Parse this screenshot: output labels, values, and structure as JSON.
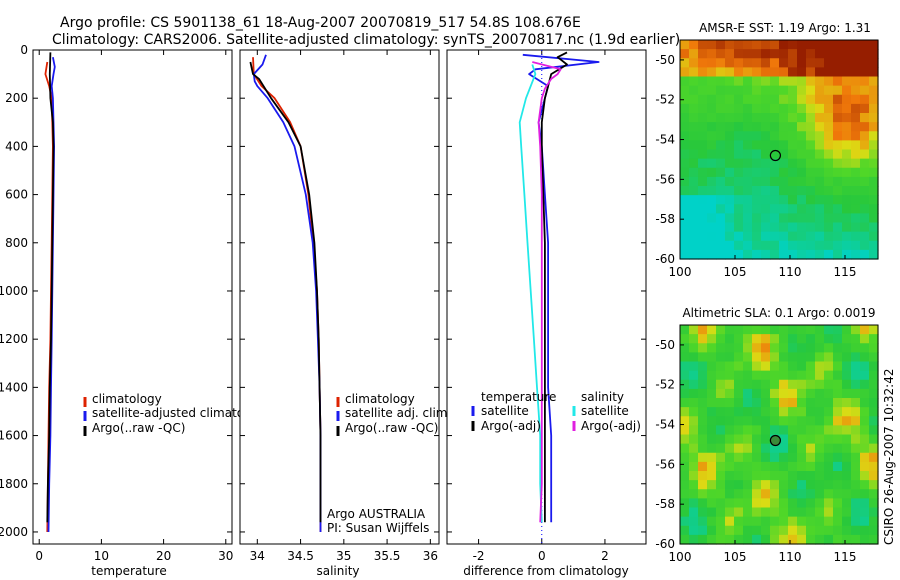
{
  "figure": {
    "title_line1": "Argo profile: CS 5901138_61 18-Aug-2007 20070819_517 54.8S 108.676E",
    "title_line2": "Climatology: CARS2006. Satellite-adjusted climatology: synTS_20070817.nc (1.9d earlier)",
    "side_stamp": "CSIRO 26-Aug-2007 10:32:42"
  },
  "colors": {
    "climatology": "#dd2200",
    "satellite": "#1a1aee",
    "argo": "#000000",
    "sal_satellite": "#22e8e8",
    "sal_argo": "#e020e0"
  },
  "chart_data": [
    {
      "type": "line",
      "name": "temperature-panel",
      "xlabel": "temperature",
      "ylabel": "",
      "xlim": [
        -1,
        31
      ],
      "ylim": [
        2050,
        0
      ],
      "xticks": [
        0,
        10,
        20,
        30
      ],
      "xtick_labels": [
        "0",
        "10",
        "20",
        "30"
      ],
      "yticks": [
        0,
        200,
        400,
        600,
        800,
        1000,
        1200,
        1400,
        1600,
        1800,
        2000
      ],
      "ytick_labels": [
        "0",
        "200",
        "400",
        "600",
        "800",
        "1000",
        "1200",
        "1400",
        "1600",
        "1800",
        "2000"
      ],
      "legend": [
        "climatology",
        "satellite-adjusted climatology",
        "Argo(..raw -QC)"
      ],
      "series": [
        {
          "name": "climatology",
          "color_key": "climatology",
          "points": [
            [
              1.3,
              50
            ],
            [
              1.0,
              100
            ],
            [
              1.6,
              150
            ],
            [
              2.0,
              200
            ],
            [
              2.1,
              300
            ],
            [
              2.2,
              400
            ],
            [
              2.1,
              600
            ],
            [
              2.0,
              800
            ],
            [
              1.9,
              1000
            ],
            [
              1.8,
              1200
            ],
            [
              1.6,
              1400
            ],
            [
              1.5,
              1600
            ],
            [
              1.4,
              1800
            ],
            [
              1.3,
              2000
            ]
          ]
        },
        {
          "name": "satellite-adjusted climatology",
          "color_key": "satellite",
          "points": [
            [
              2.2,
              30
            ],
            [
              2.5,
              70
            ],
            [
              2.3,
              100
            ],
            [
              2.0,
              150
            ],
            [
              2.2,
              200
            ],
            [
              2.3,
              300
            ],
            [
              2.4,
              400
            ],
            [
              2.3,
              600
            ],
            [
              2.2,
              800
            ],
            [
              2.1,
              1000
            ],
            [
              2.0,
              1200
            ],
            [
              1.9,
              1400
            ],
            [
              1.8,
              1600
            ],
            [
              1.6,
              1800
            ],
            [
              1.5,
              2000
            ]
          ]
        },
        {
          "name": "Argo(..raw -QC)",
          "color_key": "argo",
          "points": [
            [
              1.8,
              10
            ],
            [
              1.7,
              100
            ],
            [
              1.8,
              200
            ],
            [
              2.2,
              300
            ],
            [
              2.3,
              400
            ],
            [
              2.2,
              600
            ],
            [
              2.1,
              800
            ],
            [
              2.0,
              1000
            ],
            [
              1.9,
              1200
            ],
            [
              1.7,
              1400
            ],
            [
              1.6,
              1600
            ],
            [
              1.4,
              1800
            ],
            [
              1.3,
              1960
            ]
          ]
        }
      ]
    },
    {
      "type": "line",
      "name": "salinity-panel",
      "xlabel": "salinity",
      "xlim": [
        33.8,
        36.1
      ],
      "ylim": [
        2050,
        0
      ],
      "xticks": [
        34,
        34.5,
        35,
        35.5,
        36
      ],
      "xtick_labels": [
        "34",
        "34.5",
        "35",
        "35.5",
        "36"
      ],
      "legend": [
        "climatology",
        "satellite adj. clim.",
        "Argo(..raw -QC)"
      ],
      "annotation": [
        "Argo AUSTRALIA",
        "PI: Susan Wijffels"
      ],
      "series": [
        {
          "name": "climatology",
          "color_key": "climatology",
          "points": [
            [
              33.95,
              30
            ],
            [
              33.96,
              100
            ],
            [
              34.05,
              150
            ],
            [
              34.2,
              200
            ],
            [
              34.38,
              300
            ],
            [
              34.5,
              400
            ],
            [
              34.59,
              600
            ],
            [
              34.65,
              800
            ],
            [
              34.69,
              1000
            ],
            [
              34.71,
              1200
            ],
            [
              34.72,
              1400
            ],
            [
              34.73,
              1600
            ],
            [
              34.73,
              1800
            ],
            [
              34.73,
              2000
            ]
          ]
        },
        {
          "name": "satellite adj. clim.",
          "color_key": "satellite",
          "points": [
            [
              34.1,
              20
            ],
            [
              34.06,
              60
            ],
            [
              33.96,
              100
            ],
            [
              33.97,
              130
            ],
            [
              34.0,
              150
            ],
            [
              34.12,
              200
            ],
            [
              34.3,
              300
            ],
            [
              34.43,
              400
            ],
            [
              34.56,
              600
            ],
            [
              34.64,
              800
            ],
            [
              34.68,
              1000
            ],
            [
              34.7,
              1200
            ],
            [
              34.72,
              1400
            ],
            [
              34.73,
              1600
            ],
            [
              34.73,
              1800
            ],
            [
              34.73,
              2000
            ]
          ]
        },
        {
          "name": "Argo(..raw -QC)",
          "color_key": "argo",
          "points": [
            [
              33.92,
              50
            ],
            [
              33.95,
              100
            ],
            [
              34.02,
              120
            ],
            [
              34.16,
              200
            ],
            [
              34.36,
              300
            ],
            [
              34.5,
              400
            ],
            [
              34.6,
              600
            ],
            [
              34.66,
              800
            ],
            [
              34.69,
              1000
            ],
            [
              34.71,
              1200
            ],
            [
              34.72,
              1400
            ],
            [
              34.73,
              1600
            ],
            [
              34.73,
              1800
            ],
            [
              34.73,
              1960
            ]
          ]
        }
      ]
    },
    {
      "type": "line",
      "name": "difference-panel",
      "xlabel": "difference from climatology",
      "xlim": [
        -3,
        3.3
      ],
      "ylim": [
        2050,
        0
      ],
      "xticks": [
        -2,
        0,
        2
      ],
      "xtick_labels": [
        "-2",
        "0",
        "2"
      ],
      "legend_left_title": "temperature",
      "legend_right_title": "salinity",
      "legend_left": [
        "satellite",
        "Argo(-adj)"
      ],
      "legend_right": [
        "satellite",
        "Argo(-adj)"
      ],
      "series": [
        {
          "name": "temperature satellite",
          "color_key": "satellite",
          "points": [
            [
              -0.6,
              20
            ],
            [
              1.8,
              50
            ],
            [
              -0.2,
              80
            ],
            [
              -0.4,
              100
            ],
            [
              0.2,
              150
            ],
            [
              0.1,
              200
            ],
            [
              -0.1,
              300
            ],
            [
              0.0,
              400
            ],
            [
              0.1,
              600
            ],
            [
              0.2,
              800
            ],
            [
              0.2,
              1000
            ],
            [
              0.2,
              1200
            ],
            [
              0.2,
              1400
            ],
            [
              0.3,
              1600
            ],
            [
              0.3,
              1800
            ],
            [
              0.3,
              1960
            ]
          ]
        },
        {
          "name": "temperature Argo(-adj)",
          "color_key": "argo",
          "points": [
            [
              0.8,
              10
            ],
            [
              0.5,
              30
            ],
            [
              0.6,
              40
            ],
            [
              0.8,
              60
            ],
            [
              0.3,
              100
            ],
            [
              0.2,
              150
            ],
            [
              0.1,
              200
            ],
            [
              0.0,
              300
            ],
            [
              0.0,
              400
            ],
            [
              0.05,
              600
            ],
            [
              0.1,
              800
            ],
            [
              0.1,
              1000
            ],
            [
              0.1,
              1200
            ],
            [
              0.1,
              1400
            ],
            [
              0.1,
              1600
            ],
            [
              0.1,
              1800
            ],
            [
              0.1,
              1960
            ]
          ]
        },
        {
          "name": "salinity satellite",
          "color_key": "sal_satellite",
          "points": [
            [
              -0.3,
              60
            ],
            [
              -0.2,
              100
            ],
            [
              -0.5,
              200
            ],
            [
              -0.7,
              300
            ],
            [
              -0.65,
              400
            ],
            [
              -0.55,
              600
            ],
            [
              -0.45,
              800
            ],
            [
              -0.35,
              1000
            ],
            [
              -0.25,
              1200
            ],
            [
              -0.15,
              1400
            ],
            [
              -0.05,
              1600
            ],
            [
              -0.05,
              1800
            ],
            [
              0.0,
              1960
            ]
          ]
        },
        {
          "name": "salinity Argo(-adj)",
          "color_key": "sal_argo",
          "points": [
            [
              -0.3,
              50
            ],
            [
              0.6,
              80
            ],
            [
              0.5,
              100
            ],
            [
              0.3,
              120
            ],
            [
              0.1,
              160
            ],
            [
              0.0,
              200
            ],
            [
              -0.1,
              300
            ],
            [
              -0.05,
              400
            ],
            [
              0.0,
              600
            ],
            [
              0.0,
              800
            ],
            [
              0.0,
              1000
            ],
            [
              0.0,
              1200
            ],
            [
              0.0,
              1400
            ],
            [
              0.0,
              1600
            ],
            [
              0.0,
              1800
            ],
            [
              -0.05,
              1960
            ]
          ]
        }
      ]
    },
    {
      "type": "heatmap",
      "name": "sst-map",
      "title": "AMSR-E SST: 1.19 Argo: 1.31",
      "xlim": [
        100,
        118
      ],
      "ylim": [
        -60,
        -49
      ],
      "xticks": [
        100,
        105,
        110,
        115
      ],
      "xtick_labels": [
        "100",
        "105",
        "110",
        "115"
      ],
      "yticks": [
        -50,
        -52,
        -54,
        -56,
        -58,
        -60
      ],
      "ytick_labels": [
        "-50",
        "-52",
        "-54",
        "-56",
        "-58",
        "-60"
      ],
      "marker": [
        108.676,
        -54.8
      ]
    },
    {
      "type": "heatmap",
      "name": "sla-map",
      "title": "Altimetric SLA: 0.1 Argo: 0.0019",
      "xlim": [
        100,
        118
      ],
      "ylim": [
        -60,
        -49
      ],
      "xticks": [
        100,
        105,
        110,
        115
      ],
      "xtick_labels": [
        "100",
        "105",
        "110",
        "115"
      ],
      "yticks": [
        -50,
        -52,
        -54,
        -56,
        -58,
        -60
      ],
      "ytick_labels": [
        "-50",
        "-52",
        "-54",
        "-56",
        "-58",
        "-60"
      ],
      "marker": [
        108.676,
        -54.8
      ]
    }
  ]
}
